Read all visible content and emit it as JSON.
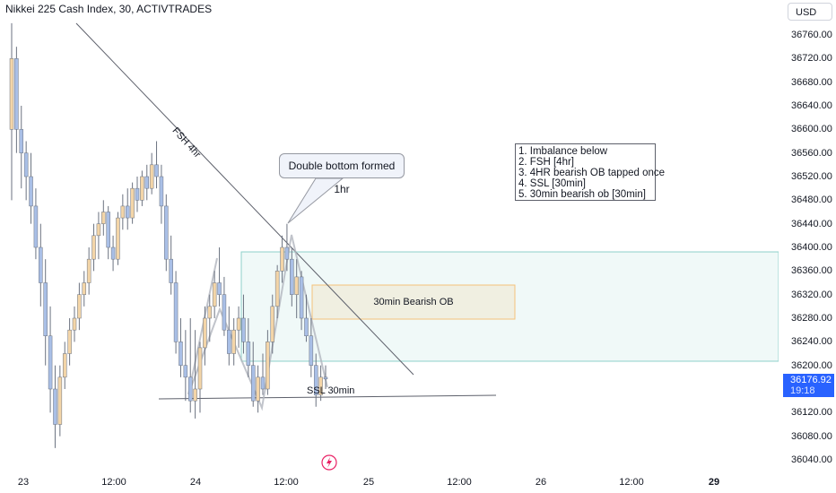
{
  "header": {
    "title": "Nikkei 225 Cash Index, 30, ACTIVTRADES",
    "currency": "USD"
  },
  "price_tag": {
    "price": "36176.92",
    "countdown": "19:18"
  },
  "annotations": {
    "fsh_label": "FSH 4hr",
    "double_bottom": "Double bottom formed 1hr",
    "ob_label": "30min Bearish OB",
    "ssl_label": "SSL 30min",
    "notes": [
      "1. Imbalance below",
      "2. FSH [4hr]",
      "3. 4HR bearish OB tapped once",
      "4. SSL [30min]",
      "5. 30min bearish ob [30min]"
    ]
  },
  "colors": {
    "up": "#f3d5a8",
    "down": "#a9bfe6",
    "wick": "#6b7280",
    "zone_green": "#26a69a",
    "zone_orange": "#f5c27a",
    "accent": "#2962ff"
  },
  "chart_data": {
    "type": "candlestick",
    "x_axis": {
      "ticks": [
        "23",
        "12:00",
        "24",
        "12:00",
        "25",
        "12:00",
        "26",
        "12:00",
        "29"
      ]
    },
    "y_axis": {
      "ticks": [
        36760,
        36720,
        36680,
        36640,
        36600,
        36560,
        36520,
        36480,
        36440,
        36400,
        36360,
        36320,
        36280,
        36240,
        36200,
        36160,
        36120,
        36080,
        36040
      ],
      "labels": [
        "36760.00",
        "36720.00",
        "36680.00",
        "36640.00",
        "36600.00",
        "36560.00",
        "36520.00",
        "36480.00",
        "36440.00",
        "36400.00",
        "36360.00",
        "36320.00",
        "36280.00",
        "36240.00",
        "36200.00",
        "36160.00",
        "36120.00",
        "36080.00",
        "36040.00"
      ]
    },
    "last_price": 36176.92,
    "zones": [
      {
        "name": "imbalance",
        "top": 36396,
        "bottom": 36210
      },
      {
        "name": "30min Bearish OB",
        "top": 36337,
        "bottom": 36276
      }
    ],
    "levels": [
      {
        "name": "SSL 30min",
        "price": 36152
      }
    ],
    "candles": [
      {
        "o": 36600,
        "h": 36780,
        "l": 36480,
        "c": 36720
      },
      {
        "o": 36720,
        "h": 36740,
        "l": 36560,
        "c": 36600
      },
      {
        "o": 36600,
        "h": 36640,
        "l": 36500,
        "c": 36560
      },
      {
        "o": 36560,
        "h": 36580,
        "l": 36480,
        "c": 36520
      },
      {
        "o": 36520,
        "h": 36560,
        "l": 36440,
        "c": 36470
      },
      {
        "o": 36470,
        "h": 36500,
        "l": 36380,
        "c": 36400
      },
      {
        "o": 36400,
        "h": 36440,
        "l": 36300,
        "c": 36340
      },
      {
        "o": 36340,
        "h": 36380,
        "l": 36200,
        "c": 36250
      },
      {
        "o": 36250,
        "h": 36300,
        "l": 36120,
        "c": 36160
      },
      {
        "o": 36160,
        "h": 36200,
        "l": 36060,
        "c": 36100
      },
      {
        "o": 36100,
        "h": 36200,
        "l": 36080,
        "c": 36180
      },
      {
        "o": 36180,
        "h": 36240,
        "l": 36160,
        "c": 36220
      },
      {
        "o": 36220,
        "h": 36280,
        "l": 36200,
        "c": 36260
      },
      {
        "o": 36260,
        "h": 36300,
        "l": 36240,
        "c": 36280
      },
      {
        "o": 36280,
        "h": 36340,
        "l": 36260,
        "c": 36320
      },
      {
        "o": 36320,
        "h": 36360,
        "l": 36300,
        "c": 36340
      },
      {
        "o": 36340,
        "h": 36400,
        "l": 36320,
        "c": 36380
      },
      {
        "o": 36380,
        "h": 36440,
        "l": 36360,
        "c": 36420
      },
      {
        "o": 36420,
        "h": 36460,
        "l": 36380,
        "c": 36440
      },
      {
        "o": 36440,
        "h": 36480,
        "l": 36420,
        "c": 36460
      },
      {
        "o": 36460,
        "h": 36470,
        "l": 36380,
        "c": 36400
      },
      {
        "o": 36400,
        "h": 36420,
        "l": 36360,
        "c": 36380
      },
      {
        "o": 36380,
        "h": 36460,
        "l": 36370,
        "c": 36450
      },
      {
        "o": 36450,
        "h": 36490,
        "l": 36430,
        "c": 36470
      },
      {
        "o": 36470,
        "h": 36500,
        "l": 36430,
        "c": 36450
      },
      {
        "o": 36450,
        "h": 36510,
        "l": 36440,
        "c": 36500
      },
      {
        "o": 36500,
        "h": 36520,
        "l": 36460,
        "c": 36480
      },
      {
        "o": 36480,
        "h": 36530,
        "l": 36470,
        "c": 36520
      },
      {
        "o": 36520,
        "h": 36540,
        "l": 36480,
        "c": 36500
      },
      {
        "o": 36500,
        "h": 36560,
        "l": 36490,
        "c": 36540
      },
      {
        "o": 36540,
        "h": 36580,
        "l": 36500,
        "c": 36520
      },
      {
        "o": 36520,
        "h": 36540,
        "l": 36440,
        "c": 36470
      },
      {
        "o": 36470,
        "h": 36490,
        "l": 36360,
        "c": 36380
      },
      {
        "o": 36380,
        "h": 36420,
        "l": 36320,
        "c": 36340
      },
      {
        "o": 36340,
        "h": 36360,
        "l": 36220,
        "c": 36240
      },
      {
        "o": 36240,
        "h": 36280,
        "l": 36180,
        "c": 36200
      },
      {
        "o": 36200,
        "h": 36260,
        "l": 36140,
        "c": 36180
      },
      {
        "o": 36180,
        "h": 36280,
        "l": 36120,
        "c": 36140
      },
      {
        "o": 36140,
        "h": 36260,
        "l": 36110,
        "c": 36160
      },
      {
        "o": 36160,
        "h": 36240,
        "l": 36120,
        "c": 36230
      },
      {
        "o": 36230,
        "h": 36300,
        "l": 36200,
        "c": 36280
      },
      {
        "o": 36280,
        "h": 36320,
        "l": 36240,
        "c": 36300
      },
      {
        "o": 36300,
        "h": 36360,
        "l": 36280,
        "c": 36340
      },
      {
        "o": 36340,
        "h": 36400,
        "l": 36300,
        "c": 36320
      },
      {
        "o": 36320,
        "h": 36350,
        "l": 36250,
        "c": 36260
      },
      {
        "o": 36260,
        "h": 36300,
        "l": 36200,
        "c": 36220
      },
      {
        "o": 36220,
        "h": 36280,
        "l": 36200,
        "c": 36260
      },
      {
        "o": 36260,
        "h": 36300,
        "l": 36230,
        "c": 36280
      },
      {
        "o": 36280,
        "h": 36320,
        "l": 36220,
        "c": 36240
      },
      {
        "o": 36240,
        "h": 36280,
        "l": 36180,
        "c": 36200
      },
      {
        "o": 36200,
        "h": 36240,
        "l": 36130,
        "c": 36140
      },
      {
        "o": 36140,
        "h": 36200,
        "l": 36120,
        "c": 36180
      },
      {
        "o": 36180,
        "h": 36220,
        "l": 36150,
        "c": 36160
      },
      {
        "o": 36160,
        "h": 36260,
        "l": 36150,
        "c": 36240
      },
      {
        "o": 36240,
        "h": 36320,
        "l": 36220,
        "c": 36300
      },
      {
        "o": 36300,
        "h": 36370,
        "l": 36280,
        "c": 36360
      },
      {
        "o": 36360,
        "h": 36420,
        "l": 36340,
        "c": 36400
      },
      {
        "o": 36400,
        "h": 36440,
        "l": 36360,
        "c": 36380
      },
      {
        "o": 36380,
        "h": 36400,
        "l": 36300,
        "c": 36320
      },
      {
        "o": 36320,
        "h": 36380,
        "l": 36280,
        "c": 36350
      },
      {
        "o": 36350,
        "h": 36360,
        "l": 36260,
        "c": 36280
      },
      {
        "o": 36280,
        "h": 36320,
        "l": 36240,
        "c": 36250
      },
      {
        "o": 36250,
        "h": 36280,
        "l": 36180,
        "c": 36200
      },
      {
        "o": 36200,
        "h": 36220,
        "l": 36130,
        "c": 36150
      },
      {
        "o": 36150,
        "h": 36200,
        "l": 36140,
        "c": 36180
      },
      {
        "o": 36180,
        "h": 36200,
        "l": 36160,
        "c": 36177
      }
    ]
  }
}
